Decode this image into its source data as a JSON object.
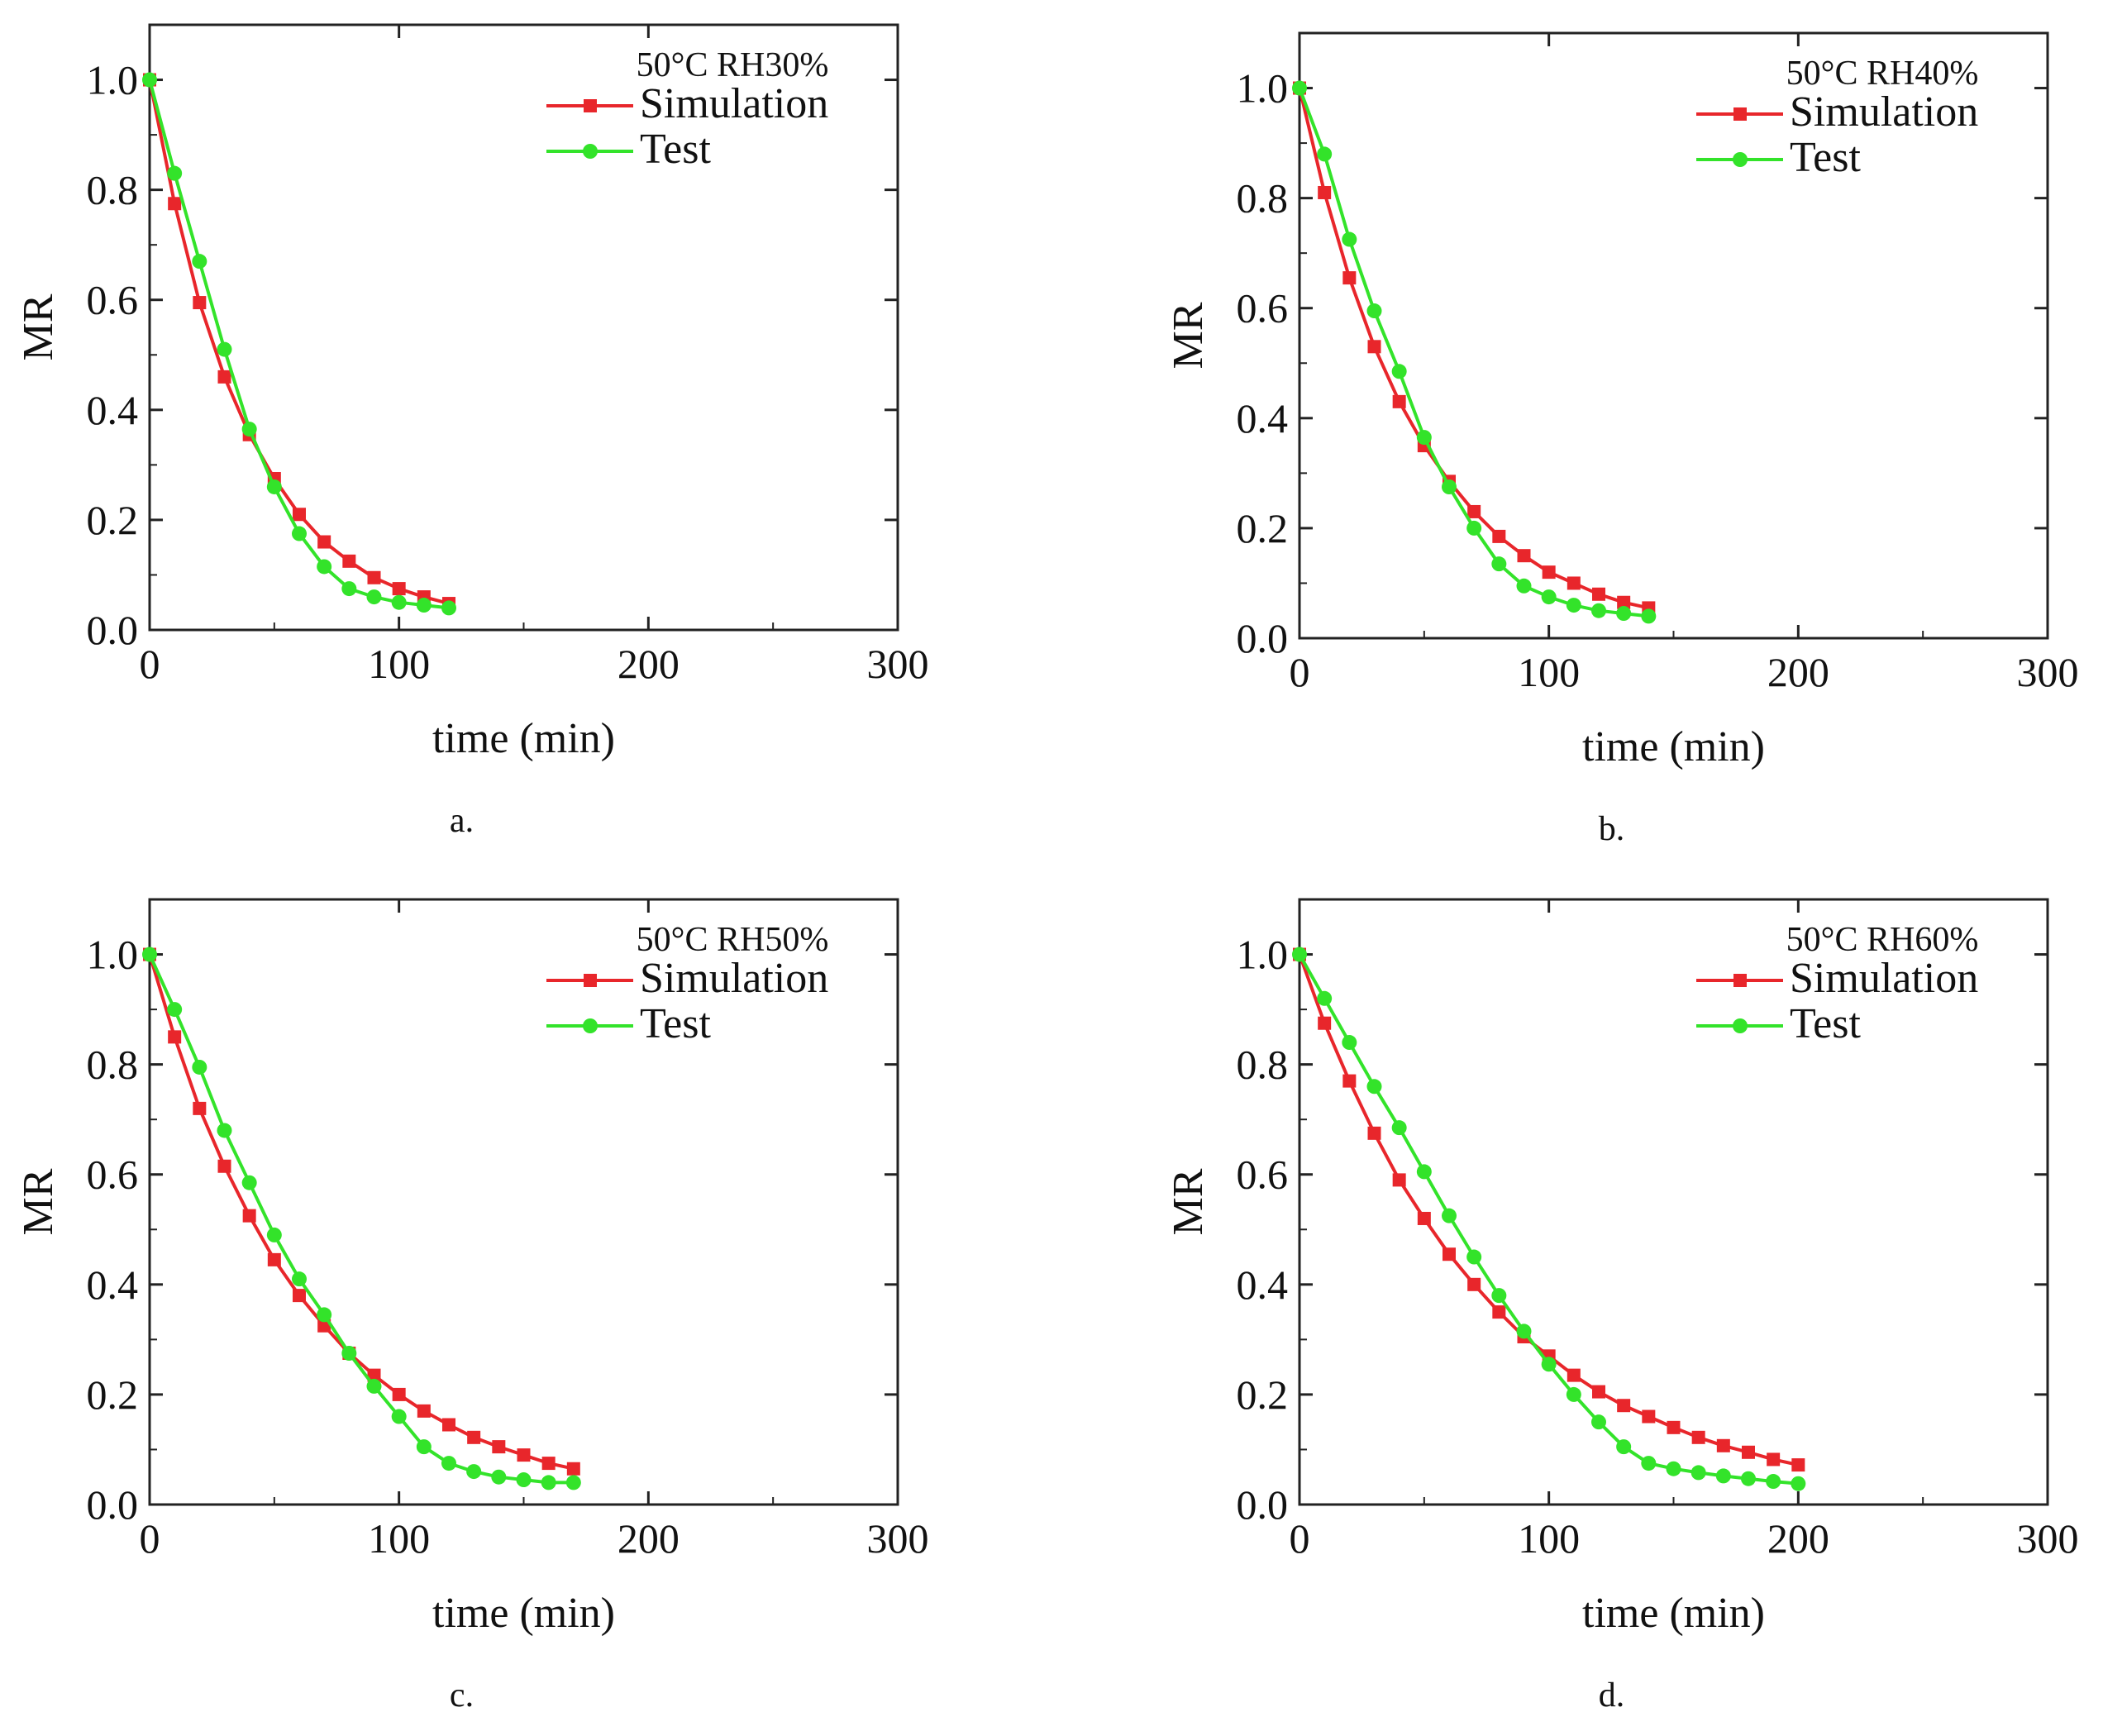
{
  "colors": {
    "simulation": "#e8262b",
    "test": "#33e32a",
    "axis": "#222222"
  },
  "legend": {
    "simulation": "Simulation",
    "test": "Test"
  },
  "chart_data": [
    {
      "type": "line",
      "caption": "a.",
      "title": "50°C RH30%",
      "xlabel": "time (min)",
      "ylabel": "MR",
      "xlim": [
        0,
        300
      ],
      "ylim": [
        0,
        1.1
      ],
      "xticks": [
        0,
        100,
        200,
        300
      ],
      "yticks": [
        "0.0",
        "0.2",
        "0.4",
        "0.6",
        "0.8",
        "1.0"
      ],
      "legend_position": "top-right",
      "x": [
        0,
        10,
        20,
        30,
        40,
        50,
        60,
        70,
        80,
        90,
        100,
        110,
        120
      ],
      "series": [
        {
          "name": "Simulation",
          "values": [
            1.0,
            0.775,
            0.595,
            0.46,
            0.355,
            0.275,
            0.21,
            0.16,
            0.125,
            0.095,
            0.075,
            0.06,
            0.048
          ]
        },
        {
          "name": "Test",
          "values": [
            1.0,
            0.83,
            0.67,
            0.51,
            0.365,
            0.26,
            0.175,
            0.115,
            0.075,
            0.06,
            0.05,
            0.045,
            0.04
          ]
        }
      ]
    },
    {
      "type": "line",
      "caption": "b.",
      "title": "50°C RH40%",
      "xlabel": "time (min)",
      "ylabel": "MR",
      "xlim": [
        0,
        300
      ],
      "ylim": [
        0,
        1.1
      ],
      "xticks": [
        0,
        100,
        200,
        300
      ],
      "yticks": [
        "0.0",
        "0.2",
        "0.4",
        "0.6",
        "0.8",
        "1.0"
      ],
      "legend_position": "top-right",
      "x": [
        0,
        10,
        20,
        30,
        40,
        50,
        60,
        70,
        80,
        90,
        100,
        110,
        120,
        130,
        140
      ],
      "series": [
        {
          "name": "Simulation",
          "values": [
            1.0,
            0.81,
            0.655,
            0.53,
            0.43,
            0.35,
            0.285,
            0.23,
            0.185,
            0.15,
            0.12,
            0.1,
            0.08,
            0.065,
            0.055
          ]
        },
        {
          "name": "Test",
          "values": [
            1.0,
            0.88,
            0.725,
            0.595,
            0.485,
            0.365,
            0.275,
            0.2,
            0.135,
            0.095,
            0.075,
            0.06,
            0.05,
            0.045,
            0.04
          ]
        }
      ]
    },
    {
      "type": "line",
      "caption": "c.",
      "title": "50°C RH50%",
      "xlabel": "time (min)",
      "ylabel": "MR",
      "xlim": [
        0,
        300
      ],
      "ylim": [
        0,
        1.1
      ],
      "xticks": [
        0,
        100,
        200,
        300
      ],
      "yticks": [
        "0.0",
        "0.2",
        "0.4",
        "0.6",
        "0.8",
        "1.0"
      ],
      "legend_position": "top-right",
      "x": [
        0,
        10,
        20,
        30,
        40,
        50,
        60,
        70,
        80,
        90,
        100,
        110,
        120,
        130,
        140,
        150,
        160,
        170
      ],
      "series": [
        {
          "name": "Simulation",
          "values": [
            1.0,
            0.85,
            0.72,
            0.615,
            0.525,
            0.445,
            0.38,
            0.325,
            0.275,
            0.235,
            0.2,
            0.17,
            0.145,
            0.122,
            0.105,
            0.09,
            0.075,
            0.065
          ]
        },
        {
          "name": "Test",
          "values": [
            1.0,
            0.9,
            0.795,
            0.68,
            0.585,
            0.49,
            0.41,
            0.345,
            0.275,
            0.215,
            0.16,
            0.105,
            0.075,
            0.06,
            0.05,
            0.045,
            0.04,
            0.04
          ]
        }
      ]
    },
    {
      "type": "line",
      "caption": "d.",
      "title": "50°C RH60%",
      "xlabel": "time (min)",
      "ylabel": "MR",
      "xlim": [
        0,
        300
      ],
      "ylim": [
        0,
        1.1
      ],
      "xticks": [
        0,
        100,
        200,
        300
      ],
      "yticks": [
        "0.0",
        "0.2",
        "0.4",
        "0.6",
        "0.8",
        "1.0"
      ],
      "legend_position": "top-right",
      "x": [
        0,
        10,
        20,
        30,
        40,
        50,
        60,
        70,
        80,
        90,
        100,
        110,
        120,
        130,
        140,
        150,
        160,
        170,
        180,
        190,
        200
      ],
      "series": [
        {
          "name": "Simulation",
          "values": [
            1.0,
            0.875,
            0.77,
            0.675,
            0.59,
            0.52,
            0.455,
            0.4,
            0.35,
            0.305,
            0.27,
            0.235,
            0.205,
            0.18,
            0.16,
            0.14,
            0.122,
            0.107,
            0.095,
            0.082,
            0.072
          ]
        },
        {
          "name": "Test",
          "values": [
            1.0,
            0.92,
            0.84,
            0.76,
            0.685,
            0.605,
            0.525,
            0.45,
            0.38,
            0.315,
            0.255,
            0.2,
            0.15,
            0.105,
            0.075,
            0.065,
            0.058,
            0.052,
            0.047,
            0.042,
            0.038
          ]
        }
      ]
    }
  ]
}
